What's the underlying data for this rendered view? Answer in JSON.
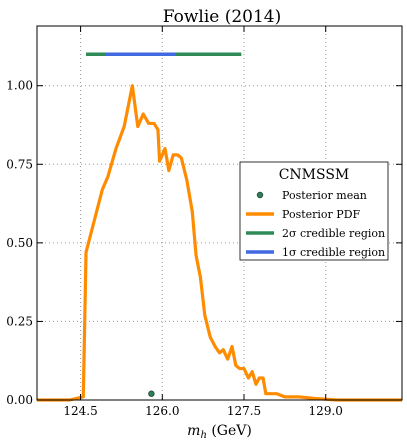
{
  "chart_data": {
    "type": "line",
    "title": "Fowlie (2014)",
    "xlabel": "m_h (GeV)",
    "ylabel": "",
    "xlim": [
      123.7,
      130.4
    ],
    "ylim": [
      0,
      1.19
    ],
    "x_ticks": [
      124.5,
      126.0,
      127.5,
      129.0
    ],
    "x_tick_labels": [
      "124.5",
      "126.0",
      "127.5",
      "129.0"
    ],
    "y_ticks": [
      0,
      0.25,
      0.5,
      0.75,
      1.0
    ],
    "y_tick_labels": [
      "0.00",
      "0.25",
      "0.50",
      "0.75",
      "1.00"
    ],
    "grid": true,
    "legend": {
      "title": "CNMSSM",
      "placement": "center-right",
      "entries": [
        {
          "label": "Posterior mean",
          "kind": "marker",
          "color": "#2e7d5b"
        },
        {
          "label": "Posterior PDF",
          "kind": "line",
          "color": "#ff8c00"
        },
        {
          "label": "2σ credible region",
          "kind": "line",
          "color": "#2e8b57"
        },
        {
          "label": "1σ credible region",
          "kind": "line",
          "color": "#4169e1"
        }
      ]
    },
    "series": [
      {
        "name": "Posterior PDF",
        "color": "#ff8c00",
        "x": [
          123.7,
          124.3,
          124.55,
          124.6,
          124.75,
          124.9,
          125.0,
          125.15,
          125.3,
          125.45,
          125.55,
          125.65,
          125.75,
          125.85,
          125.92,
          125.95,
          126.05,
          126.12,
          126.2,
          126.28,
          126.35,
          126.45,
          126.55,
          126.62,
          126.7,
          126.78,
          126.88,
          126.97,
          127.05,
          127.12,
          127.2,
          127.28,
          127.35,
          127.42,
          127.5,
          127.58,
          127.65,
          127.72,
          127.78,
          127.85,
          127.9,
          128.0,
          128.1,
          128.25,
          128.5,
          128.8,
          129.2,
          129.8,
          130.4
        ],
        "y": [
          0.0,
          0.0,
          0.01,
          0.47,
          0.57,
          0.67,
          0.71,
          0.8,
          0.87,
          1.0,
          0.87,
          0.91,
          0.88,
          0.88,
          0.86,
          0.76,
          0.8,
          0.73,
          0.78,
          0.78,
          0.77,
          0.7,
          0.6,
          0.46,
          0.39,
          0.27,
          0.2,
          0.17,
          0.15,
          0.16,
          0.13,
          0.17,
          0.11,
          0.1,
          0.1,
          0.07,
          0.09,
          0.05,
          0.07,
          0.07,
          0.02,
          0.02,
          0.02,
          0.01,
          0.01,
          0.005,
          0.0,
          0.0,
          0.0
        ]
      },
      {
        "name": "2σ credible region",
        "color": "#2e8b57",
        "x": [
          124.6,
          127.45
        ],
        "y": [
          1.1,
          1.1
        ]
      },
      {
        "name": "1σ credible region",
        "color": "#4169e1",
        "x": [
          124.95,
          126.25
        ],
        "y": [
          1.1,
          1.1
        ]
      },
      {
        "name": "Posterior mean",
        "color": "#2e7d5b",
        "x": [
          125.8
        ],
        "y": [
          0.02
        ]
      }
    ]
  }
}
